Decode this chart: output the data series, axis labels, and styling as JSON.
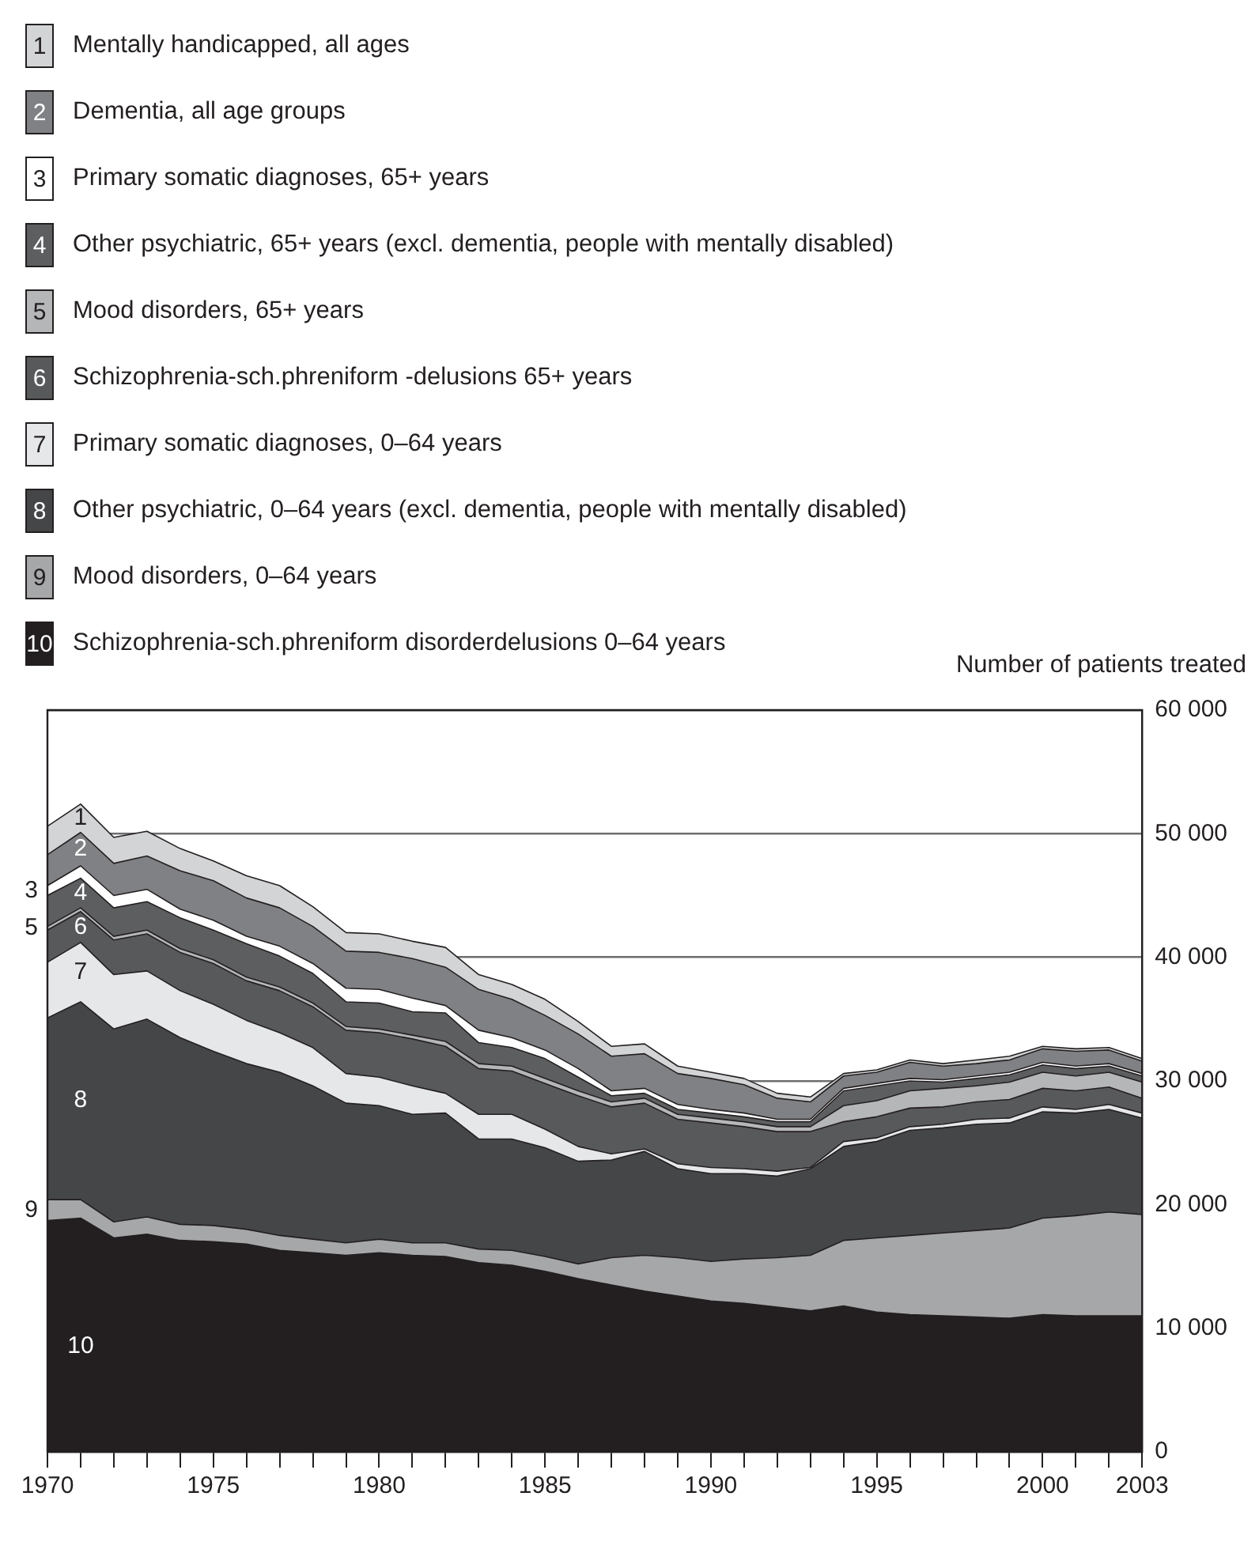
{
  "chart_data": {
    "type": "area",
    "stacked": true,
    "ylabel": "Number of patients treated",
    "legend": "top",
    "grid": "y",
    "x": [
      1970,
      1971,
      1972,
      1973,
      1974,
      1975,
      1976,
      1977,
      1978,
      1979,
      1980,
      1981,
      1982,
      1983,
      1984,
      1985,
      1986,
      1987,
      1988,
      1989,
      1990,
      1991,
      1992,
      1993,
      1994,
      1995,
      1996,
      1997,
      1998,
      1999,
      2000,
      2001,
      2002,
      2003
    ],
    "xlim": [
      1970,
      2003
    ],
    "xticks": [
      1970,
      {
        "value": 1971,
        "label": null
      },
      {
        "value": 1972,
        "label": null
      },
      {
        "value": 1973,
        "label": null
      },
      {
        "value": 1974,
        "label": null
      },
      1975,
      {
        "value": 1976,
        "label": null
      },
      {
        "value": 1977,
        "label": null
      },
      {
        "value": 1978,
        "label": null
      },
      {
        "value": 1979,
        "label": null
      },
      1980,
      {
        "value": 1981,
        "label": null
      },
      {
        "value": 1982,
        "label": null
      },
      {
        "value": 1983,
        "label": null
      },
      {
        "value": 1984,
        "label": null
      },
      1985,
      {
        "value": 1986,
        "label": null
      },
      {
        "value": 1987,
        "label": null
      },
      {
        "value": 1988,
        "label": null
      },
      {
        "value": 1989,
        "label": null
      },
      1990,
      {
        "value": 1991,
        "label": null
      },
      {
        "value": 1992,
        "label": null
      },
      {
        "value": 1993,
        "label": null
      },
      {
        "value": 1994,
        "label": null
      },
      1995,
      {
        "value": 1996,
        "label": null
      },
      {
        "value": 1997,
        "label": null
      },
      {
        "value": 1998,
        "label": null
      },
      {
        "value": 1999,
        "label": null
      },
      2000,
      {
        "value": 2001,
        "label": null
      },
      {
        "value": 2002,
        "label": null
      },
      2003
    ],
    "ylim": [
      0,
      60000
    ],
    "yticks": [
      0,
      {
        "value": 10000,
        "label": "10 000"
      },
      {
        "value": 20000,
        "label": "20 000"
      },
      {
        "value": 30000,
        "label": "30 000"
      },
      {
        "value": 40000,
        "label": "40 000"
      },
      {
        "value": 50000,
        "label": "50 000"
      },
      {
        "value": 60000,
        "label": "60 000"
      }
    ],
    "series": [
      {
        "name": "Schizophrenia-sch.phreniform disorderdelusions 0–64 years",
        "color": "#231f20",
        "values": [
          18700,
          18900,
          17300,
          17600,
          17100,
          17000,
          16800,
          16300,
          16100,
          15900,
          16100,
          15900,
          15800,
          15300,
          15100,
          14600,
          14000,
          13500,
          13000,
          12600,
          12200,
          12000,
          11700,
          11400,
          11800,
          11300,
          11100,
          11000,
          10900,
          10800,
          11100,
          11000,
          11000,
          11000
        ]
      },
      {
        "name": "Mood disorders, 0–64 years",
        "color": "#a6a7a9",
        "values": [
          1700,
          1500,
          1300,
          1400,
          1300,
          1300,
          1200,
          1200,
          1100,
          1000,
          1100,
          1000,
          1100,
          1100,
          1200,
          1200,
          1200,
          2200,
          2900,
          3100,
          3200,
          3600,
          4000,
          4500,
          5300,
          6000,
          6400,
          6700,
          7000,
          7300,
          7800,
          8100,
          8400,
          8200
        ]
      },
      {
        "name": "Other psychiatric, 0–64 years (excl. dementia, people with mentally disabled)",
        "color": "#454648",
        "values": [
          14700,
          16000,
          15600,
          16000,
          15100,
          14100,
          13400,
          13200,
          12400,
          11300,
          10800,
          10400,
          10500,
          8900,
          9000,
          8800,
          8300,
          7900,
          8400,
          7200,
          7100,
          6900,
          6600,
          7000,
          7600,
          7800,
          8500,
          8500,
          8600,
          8500,
          8600,
          8300,
          8300,
          7800
        ]
      },
      {
        "name": "Primary somatic diagnoses, 0–64 years",
        "color": "#e6e7e8",
        "values": [
          4500,
          4800,
          4400,
          3900,
          3800,
          3800,
          3500,
          3200,
          3100,
          2400,
          2300,
          2300,
          1600,
          2000,
          2000,
          1500,
          1200,
          500,
          200,
          400,
          500,
          400,
          400,
          100,
          400,
          300,
          300,
          300,
          400,
          400,
          400,
          300,
          400,
          400
        ]
      },
      {
        "name": "Schizophrenia-sch.phreniform -delusions 65+ years",
        "color": "#58595b",
        "values": [
          2600,
          2500,
          2800,
          3000,
          3100,
          3300,
          3200,
          3400,
          3300,
          3500,
          3600,
          3800,
          3800,
          3700,
          3500,
          3700,
          4100,
          3800,
          3700,
          3600,
          3600,
          3400,
          3200,
          2900,
          1600,
          1700,
          1500,
          1400,
          1400,
          1500,
          1500,
          1500,
          1400,
          1200
        ]
      },
      {
        "name": "Mood disorders, 65+ years",
        "color": "#b5b6b8",
        "values": [
          300,
          300,
          300,
          300,
          300,
          300,
          300,
          300,
          300,
          300,
          300,
          300,
          400,
          400,
          400,
          400,
          400,
          400,
          400,
          400,
          400,
          400,
          400,
          400,
          1300,
          1300,
          1400,
          1500,
          1300,
          1400,
          1300,
          1200,
          1200,
          1300
        ]
      },
      {
        "name": "Other psychiatric, 65+ years (excl. dementia, people with mentally disabled)",
        "color": "#5d5e60",
        "values": [
          2500,
          2400,
          2300,
          2300,
          2500,
          2400,
          2700,
          2500,
          2400,
          2000,
          2100,
          1900,
          2300,
          1700,
          1500,
          1600,
          1100,
          500,
          400,
          400,
          400,
          400,
          400,
          400,
          1200,
          1200,
          800,
          500,
          600,
          600,
          600,
          600,
          500,
          500
        ]
      },
      {
        "name": "Primary somatic diagnoses, 65+ years",
        "color": "#ffffff",
        "values": [
          800,
          1000,
          1000,
          1000,
          700,
          800,
          600,
          800,
          800,
          1100,
          1100,
          1100,
          600,
          1000,
          800,
          700,
          700,
          400,
          400,
          400,
          300,
          300,
          200,
          200,
          200,
          200,
          200,
          200,
          200,
          200,
          200,
          200,
          200,
          200
        ]
      },
      {
        "name": "Dementia, all age groups",
        "color": "#808184",
        "values": [
          2500,
          2700,
          2600,
          2700,
          3100,
          3200,
          3100,
          3100,
          3000,
          3000,
          3000,
          3200,
          3100,
          3300,
          3100,
          2800,
          2800,
          2800,
          2800,
          2500,
          2500,
          2300,
          1700,
          1400,
          1000,
          900,
          1300,
          1100,
          1000,
          1000,
          1100,
          1200,
          1100,
          1000
        ]
      },
      {
        "name": "Mentally handicapped, all ages",
        "color": "#d3d4d6",
        "values": [
          2300,
          2300,
          2100,
          2000,
          1800,
          1600,
          1800,
          1800,
          1600,
          1500,
          1500,
          1400,
          1600,
          1200,
          1200,
          1300,
          1000,
          800,
          800,
          600,
          500,
          500,
          400,
          400,
          200,
          200,
          200,
          200,
          300,
          300,
          200,
          200,
          200,
          200
        ]
      }
    ],
    "annotations": [
      "1",
      "2",
      "3",
      "4",
      "5",
      "6",
      "7",
      "8",
      "9",
      "10"
    ]
  }
}
